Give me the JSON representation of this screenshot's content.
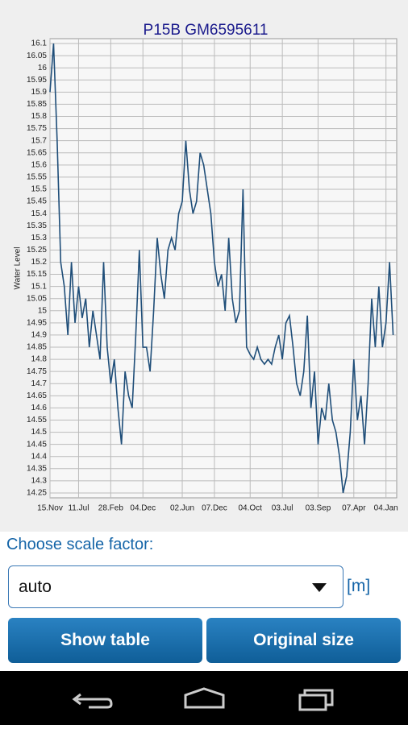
{
  "chart_data": {
    "type": "line",
    "title": "P15B GM6595611",
    "y_label": "Water Level",
    "color": "#1f4e79",
    "grid": true,
    "x": [
      0,
      1,
      2,
      3,
      4,
      5,
      6,
      7,
      8,
      9,
      10,
      11,
      12,
      13,
      14,
      15,
      16,
      17,
      18,
      19,
      20,
      21,
      22,
      23,
      24,
      25,
      26,
      27,
      28,
      29,
      30,
      31,
      32,
      33,
      34,
      35,
      36,
      37,
      38,
      39,
      40,
      41,
      42,
      43,
      44,
      45,
      46,
      47,
      48,
      49,
      50,
      51,
      52,
      53,
      54,
      55,
      56,
      57,
      58,
      59,
      60,
      61,
      62,
      63,
      64,
      65,
      66,
      67,
      68,
      69,
      70,
      71,
      72,
      73,
      74,
      75,
      76,
      77,
      78,
      79,
      80,
      81,
      82,
      83,
      84,
      85,
      86,
      87,
      88,
      89,
      90,
      91,
      92,
      93,
      94,
      95,
      96
    ],
    "values": [
      15.9,
      16.1,
      15.7,
      15.2,
      15.1,
      14.9,
      15.2,
      14.95,
      15.1,
      14.97,
      15.05,
      14.85,
      15.0,
      14.9,
      14.8,
      15.2,
      14.85,
      14.7,
      14.8,
      14.6,
      14.45,
      14.75,
      14.65,
      14.6,
      14.9,
      15.25,
      14.85,
      14.85,
      14.75,
      15.0,
      15.3,
      15.15,
      15.05,
      15.25,
      15.3,
      15.25,
      15.4,
      15.45,
      15.7,
      15.5,
      15.4,
      15.45,
      15.65,
      15.6,
      15.5,
      15.4,
      15.2,
      15.1,
      15.15,
      15.0,
      15.3,
      15.05,
      14.95,
      15.0,
      15.5,
      14.85,
      14.82,
      14.8,
      14.85,
      14.8,
      14.78,
      14.8,
      14.78,
      14.85,
      14.9,
      14.8,
      14.95,
      14.98,
      14.85,
      14.7,
      14.65,
      14.75,
      14.98,
      14.6,
      14.75,
      14.45,
      14.6,
      14.55,
      14.7,
      14.55,
      14.5,
      14.4,
      14.25,
      14.32,
      14.5,
      14.8,
      14.55,
      14.65,
      14.45,
      14.7,
      15.05,
      14.85,
      15.1,
      14.85,
      14.95,
      15.2,
      14.9
    ],
    "xlim": [
      0,
      97
    ],
    "xticks": [
      {
        "value": 0,
        "label": "15.Nov"
      },
      {
        "value": 8,
        "label": "11.Jul"
      },
      {
        "value": 17,
        "label": "28.Feb"
      },
      {
        "value": 26,
        "label": "04.Dec"
      },
      {
        "value": 37,
        "label": "02.Jun"
      },
      {
        "value": 46,
        "label": "07.Dec"
      },
      {
        "value": 56,
        "label": "04.Oct"
      },
      {
        "value": 65,
        "label": "03.Jul"
      },
      {
        "value": 75,
        "label": "03.Sep"
      },
      {
        "value": 85,
        "label": "07.Apr"
      },
      {
        "value": 94,
        "label": "04.Jan"
      }
    ],
    "ylim": [
      14.23,
      16.12
    ],
    "yticks": [
      14.25,
      14.3,
      14.35,
      14.4,
      14.45,
      14.5,
      14.55,
      14.6,
      14.65,
      14.7,
      14.75,
      14.8,
      14.85,
      14.9,
      14.95,
      15,
      15.05,
      15.1,
      15.15,
      15.2,
      15.25,
      15.3,
      15.35,
      15.4,
      15.45,
      15.5,
      15.55,
      15.6,
      15.65,
      15.7,
      15.75,
      15.8,
      15.85,
      15.9,
      15.95,
      16,
      16.05,
      16.1
    ]
  },
  "ui": {
    "scale_label": "Choose scale factor:",
    "dropdown_value": "auto",
    "unit": "[m]",
    "buttons": [
      "Show table",
      "Original size"
    ]
  }
}
